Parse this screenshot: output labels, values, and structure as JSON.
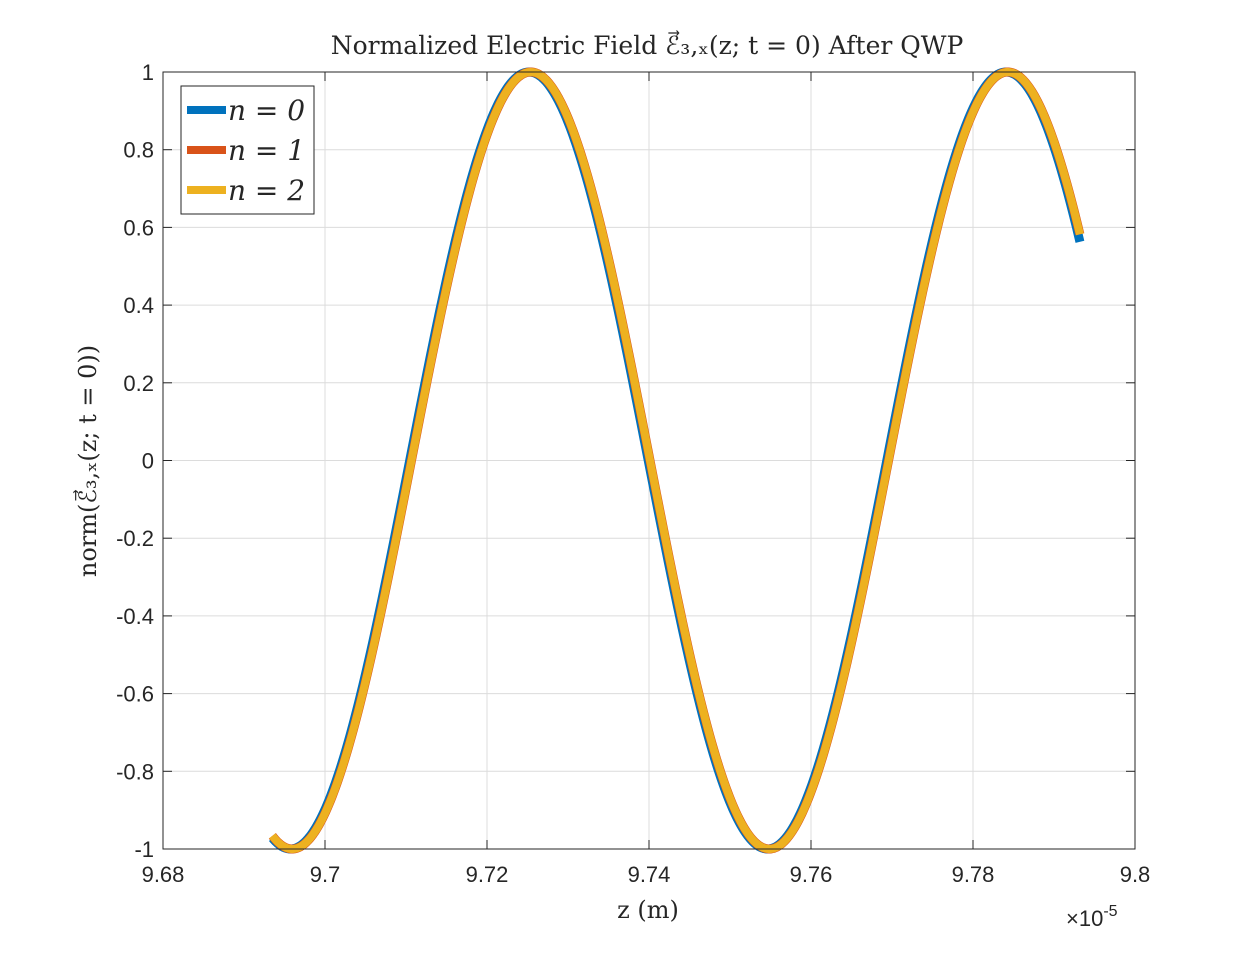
{
  "chart_data": {
    "type": "line",
    "title": "Normalized Electric Field ℰ⃗₃,ₓ(z; t = 0) After QWP",
    "xlabel": "z (m)",
    "ylabel": "norm(ℰ⃗₃,ₓ(z; t = 0))",
    "x_exponent_label": "×10",
    "x_exponent_power": "-5",
    "xlim": [
      9.68,
      9.8
    ],
    "ylim": [
      -1,
      1
    ],
    "xticks": [
      "9.68",
      "9.7",
      "9.72",
      "9.74",
      "9.76",
      "9.78",
      "9.8"
    ],
    "yticks": [
      "-1",
      "-0.8",
      "-0.6",
      "-0.4",
      "-0.2",
      "0",
      "0.2",
      "0.4",
      "0.6",
      "0.8",
      "1"
    ],
    "grid": true,
    "legend_position": "top-left",
    "wave": {
      "x_start": 9.6935,
      "x_end": 9.7932,
      "peak_x": 9.7254,
      "period": 0.0589,
      "amplitude": 1
    },
    "series": [
      {
        "name": "n = 0",
        "color": "#0072BD",
        "x_end": 9.7932,
        "y_end": 0.57
      },
      {
        "name": "n = 1",
        "color": "#D95319",
        "x_end": 9.7932,
        "y_end": 0.59
      },
      {
        "name": "n = 2",
        "color": "#EDB120",
        "x_end": 9.7932,
        "y_end": 0.59
      }
    ]
  }
}
